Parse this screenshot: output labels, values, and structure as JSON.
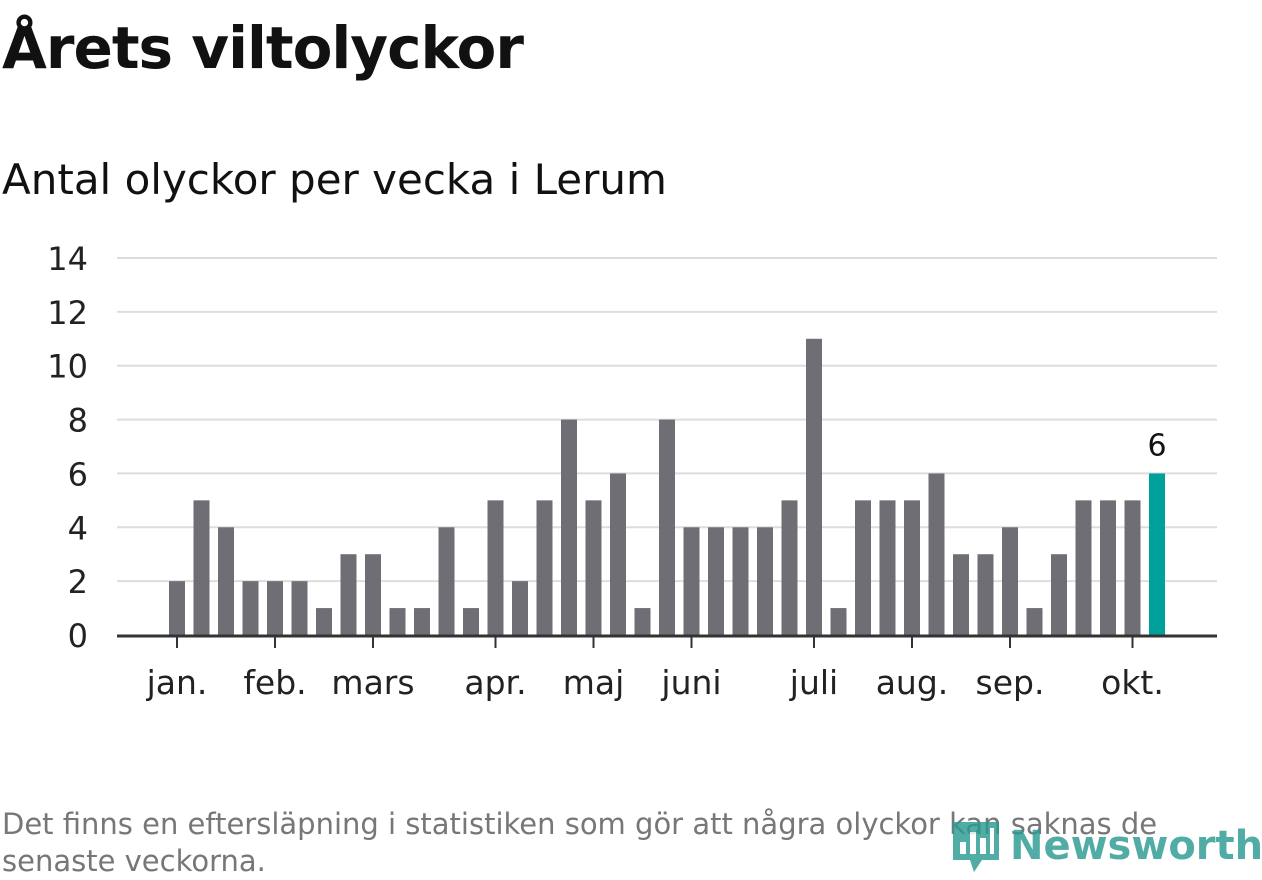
{
  "header": {
    "title": "Årets viltolyckor",
    "subtitle": "Antal olyckor per vecka i Lerum"
  },
  "chart_data": {
    "type": "bar",
    "title": "Årets viltolyckor",
    "subtitle": "Antal olyckor per vecka i Lerum",
    "xlabel": "",
    "ylabel": "",
    "ylim": [
      0,
      14
    ],
    "yticks": [
      "0",
      "2",
      "4",
      "6",
      "8",
      "10",
      "12",
      "14"
    ],
    "grid": true,
    "month_labels": [
      {
        "label": "jan.",
        "week": 1
      },
      {
        "label": "feb.",
        "week": 5
      },
      {
        "label": "mars",
        "week": 9
      },
      {
        "label": "apr.",
        "week": 14
      },
      {
        "label": "maj",
        "week": 18
      },
      {
        "label": "juni",
        "week": 22
      },
      {
        "label": "juli",
        "week": 27
      },
      {
        "label": "aug.",
        "week": 31
      },
      {
        "label": "sep.",
        "week": 35
      },
      {
        "label": "okt.",
        "week": 40
      }
    ],
    "weeks": [
      1,
      2,
      3,
      4,
      5,
      6,
      7,
      8,
      9,
      10,
      11,
      12,
      13,
      14,
      15,
      16,
      17,
      18,
      19,
      20,
      21,
      22,
      23,
      24,
      25,
      26,
      27,
      28,
      29,
      30,
      31,
      32,
      33,
      34,
      35,
      36,
      37,
      38,
      39,
      40,
      41
    ],
    "values": [
      2,
      5,
      4,
      2,
      2,
      2,
      1,
      3,
      3,
      1,
      1,
      4,
      1,
      5,
      2,
      5,
      8,
      5,
      6,
      1,
      8,
      4,
      4,
      4,
      4,
      5,
      11,
      1,
      5,
      5,
      5,
      6,
      3,
      3,
      4,
      1,
      3,
      5,
      5,
      5,
      6
    ],
    "highlight_index": 40,
    "highlight_label": "6",
    "colors": {
      "bar": "#6f6e74",
      "highlight": "#00a19a",
      "grid": "#dddddd",
      "axis": "#333333"
    }
  },
  "footer": {
    "note": "Det finns en eftersläpning i statistiken som gör att några olyckor kan saknas de senaste veckorna.",
    "brand": "Newsworthy"
  }
}
